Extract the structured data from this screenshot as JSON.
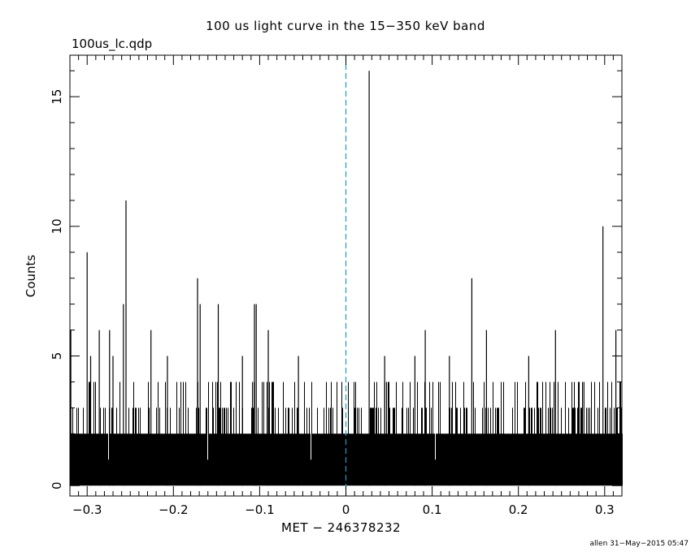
{
  "header": {
    "title": "100 us light curve in the 15−350 keV band",
    "file": "100us_lc.qdp"
  },
  "footer": {
    "text": "allen 31−May−2015 05:47"
  },
  "chart_data": {
    "type": "line",
    "style": "histogram",
    "title": "100 us light curve in the 15−350 keV band",
    "xlabel": "MET − 246378232",
    "ylabel": "Counts",
    "xlim": [
      -0.32,
      0.32
    ],
    "ylim": [
      -0.4,
      16.6
    ],
    "bin_width": 0.0001,
    "reference_line": {
      "x": 0,
      "style": "dashed",
      "color": "#1a9dc0"
    },
    "x_ticks": [
      -0.3,
      -0.2,
      -0.1,
      0,
      0.1,
      0.2,
      0.3
    ],
    "x_tick_labels": [
      "−0.3",
      "−0.2",
      "−0.1",
      "0",
      "0.1",
      "0.2",
      "0.3"
    ],
    "y_ticks": [
      0,
      5,
      10,
      15
    ],
    "y_tick_labels": [
      "0",
      "5",
      "10",
      "15"
    ],
    "background_counts": {
      "typical_min": 0,
      "typical_max": 2,
      "frequent_max": 3
    },
    "peaks": [
      {
        "x": -0.319,
        "y": 6
      },
      {
        "x": -0.3,
        "y": 9
      },
      {
        "x": -0.296,
        "y": 5
      },
      {
        "x": -0.286,
        "y": 6
      },
      {
        "x": -0.274,
        "y": 6
      },
      {
        "x": -0.27,
        "y": 5
      },
      {
        "x": -0.258,
        "y": 7
      },
      {
        "x": -0.255,
        "y": 11
      },
      {
        "x": -0.226,
        "y": 6
      },
      {
        "x": -0.207,
        "y": 5
      },
      {
        "x": -0.172,
        "y": 8
      },
      {
        "x": -0.169,
        "y": 7
      },
      {
        "x": -0.148,
        "y": 7
      },
      {
        "x": -0.12,
        "y": 5
      },
      {
        "x": -0.106,
        "y": 7
      },
      {
        "x": -0.104,
        "y": 7
      },
      {
        "x": -0.09,
        "y": 6
      },
      {
        "x": -0.055,
        "y": 5
      },
      {
        "x": 0.027,
        "y": 16
      },
      {
        "x": 0.045,
        "y": 5
      },
      {
        "x": 0.08,
        "y": 5
      },
      {
        "x": 0.092,
        "y": 6
      },
      {
        "x": 0.12,
        "y": 5
      },
      {
        "x": 0.146,
        "y": 8
      },
      {
        "x": 0.163,
        "y": 6
      },
      {
        "x": 0.212,
        "y": 5
      },
      {
        "x": 0.243,
        "y": 6
      },
      {
        "x": 0.276,
        "y": 4
      },
      {
        "x": 0.298,
        "y": 10
      },
      {
        "x": 0.313,
        "y": 6
      }
    ]
  }
}
